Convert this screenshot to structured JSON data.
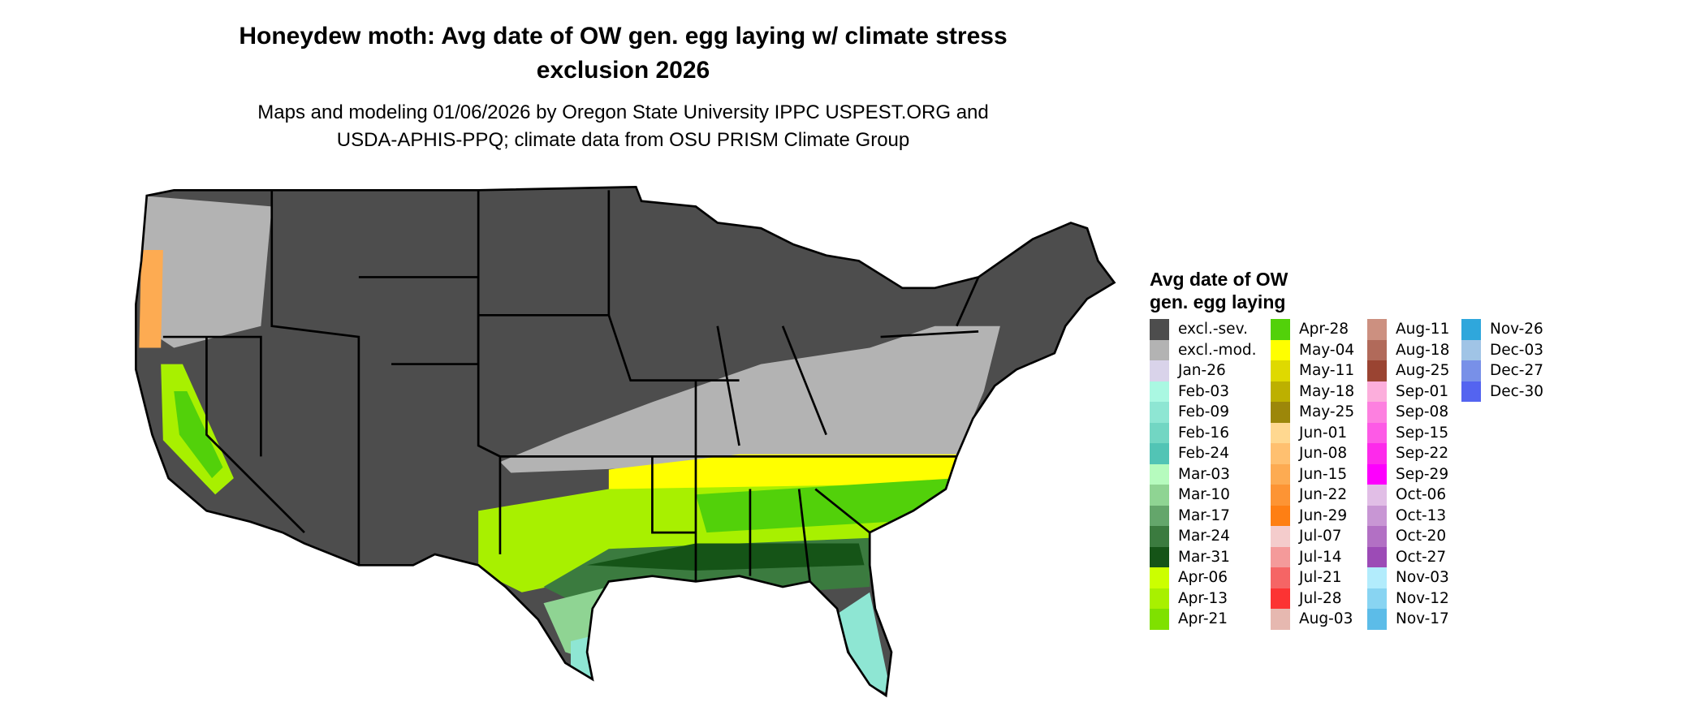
{
  "title": {
    "line1": "Honeydew moth: Avg date of OW gen. egg laying w/ climate stress",
    "line2": "exclusion 2026"
  },
  "subtitle": {
    "line1": "Maps and modeling 01/06/2026 by Oregon State University IPPC USPEST.ORG and",
    "line2": "USDA-APHIS-PPQ; climate data from OSU PRISM Climate Group"
  },
  "legend": {
    "title_line1": "Avg date of OW",
    "title_line2": "gen. egg laying",
    "items": [
      {
        "label": "excl.-sev.",
        "color": "#4d4d4d"
      },
      {
        "label": "excl.-mod.",
        "color": "#b3b3b3"
      },
      {
        "label": "Jan-26",
        "color": "#d9d3ea"
      },
      {
        "label": "Feb-03",
        "color": "#aaf8e2"
      },
      {
        "label": "Feb-09",
        "color": "#8ee6d3"
      },
      {
        "label": "Feb-16",
        "color": "#72d6c3"
      },
      {
        "label": "Feb-24",
        "color": "#52c4b5"
      },
      {
        "label": "Mar-03",
        "color": "#b6fbbe"
      },
      {
        "label": "Mar-10",
        "color": "#8fd493"
      },
      {
        "label": "Mar-17",
        "color": "#64a66b"
      },
      {
        "label": "Mar-24",
        "color": "#3b7b3f"
      },
      {
        "label": "Mar-31",
        "color": "#155417"
      },
      {
        "label": "Apr-06",
        "color": "#ccff00"
      },
      {
        "label": "Apr-13",
        "color": "#a8f000"
      },
      {
        "label": "Apr-21",
        "color": "#7fe100"
      },
      {
        "label": "Apr-28",
        "color": "#52d10a"
      },
      {
        "label": "May-04",
        "color": "#ffff00"
      },
      {
        "label": "May-11",
        "color": "#dfd900"
      },
      {
        "label": "May-18",
        "color": "#bdb000"
      },
      {
        "label": "May-25",
        "color": "#9c870a"
      },
      {
        "label": "Jun-01",
        "color": "#ffd890"
      },
      {
        "label": "Jun-08",
        "color": "#ffc070"
      },
      {
        "label": "Jun-15",
        "color": "#fdab52"
      },
      {
        "label": "Jun-22",
        "color": "#fd9434"
      },
      {
        "label": "Jun-29",
        "color": "#fe7f14"
      },
      {
        "label": "Jul-07",
        "color": "#f4cccc"
      },
      {
        "label": "Jul-14",
        "color": "#f49a9a"
      },
      {
        "label": "Jul-21",
        "color": "#f56565"
      },
      {
        "label": "Jul-28",
        "color": "#fc3333"
      },
      {
        "label": "Aug-03",
        "color": "#e6b8b0"
      },
      {
        "label": "Aug-11",
        "color": "#cc9080"
      },
      {
        "label": "Aug-18",
        "color": "#b16a5a"
      },
      {
        "label": "Aug-25",
        "color": "#9a4432"
      },
      {
        "label": "Sep-01",
        "color": "#fcaedc"
      },
      {
        "label": "Sep-08",
        "color": "#fd80e0"
      },
      {
        "label": "Sep-15",
        "color": "#fd5ae6"
      },
      {
        "label": "Sep-22",
        "color": "#fd2aeb"
      },
      {
        "label": "Sep-29",
        "color": "#fd00fd"
      },
      {
        "label": "Oct-06",
        "color": "#e1bee6"
      },
      {
        "label": "Oct-13",
        "color": "#c896d4"
      },
      {
        "label": "Oct-20",
        "color": "#b270c4"
      },
      {
        "label": "Oct-27",
        "color": "#9c4bb6"
      },
      {
        "label": "Nov-03",
        "color": "#b2ecfc"
      },
      {
        "label": "Nov-12",
        "color": "#88d4f2"
      },
      {
        "label": "Nov-17",
        "color": "#5cbce8"
      },
      {
        "label": "Nov-26",
        "color": "#2fa7dc"
      },
      {
        "label": "Dec-03",
        "color": "#a0c4e6"
      },
      {
        "label": "Dec-27",
        "color": "#7890e8"
      },
      {
        "label": "Dec-30",
        "color": "#5464f0"
      }
    ]
  },
  "map": {
    "region": "Contiguous United States",
    "zones": [
      {
        "zone": "excl.-sev.",
        "color": "#4d4d4d"
      },
      {
        "zone": "excl.-mod.",
        "color": "#b3b3b3"
      },
      {
        "zone": "May-04",
        "color": "#ffff00"
      },
      {
        "zone": "Apr-13",
        "color": "#a8f000"
      },
      {
        "zone": "Apr-28",
        "color": "#52d10a"
      },
      {
        "zone": "Mar-24",
        "color": "#3b7b3f"
      },
      {
        "zone": "Mar-31",
        "color": "#155417"
      },
      {
        "zone": "Mar-10",
        "color": "#8fd493"
      },
      {
        "zone": "Feb-09",
        "color": "#8ee6d3"
      },
      {
        "zone": "Jun-15",
        "color": "#fdab52"
      }
    ]
  }
}
